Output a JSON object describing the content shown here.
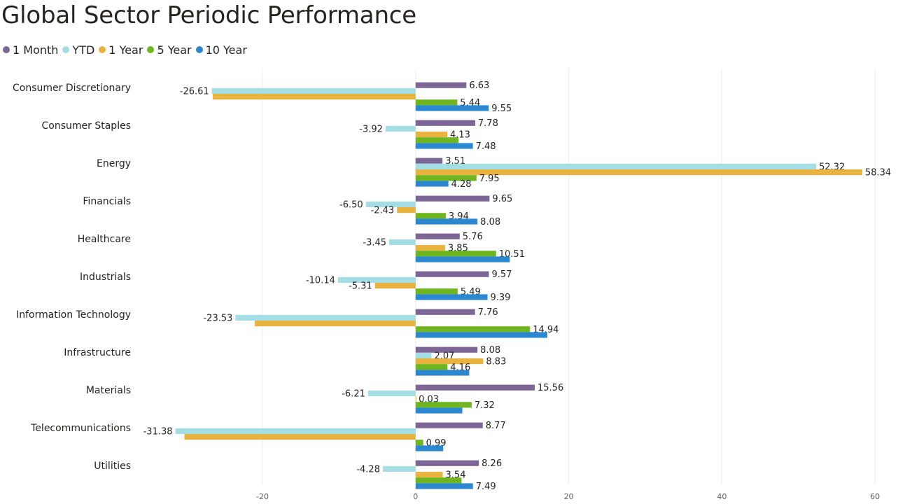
{
  "title": "Global Sector Periodic Performance",
  "chart_data": {
    "type": "bar",
    "orientation": "horizontal",
    "title": "Global Sector Periodic Performance",
    "categories": [
      "Consumer Discretionary",
      "Consumer Staples",
      "Energy",
      "Financials",
      "Healthcare",
      "Industrials",
      "Information Technology",
      "Infrastructure",
      "Materials",
      "Telecommunications",
      "Utilities"
    ],
    "series": [
      {
        "name": "1 Month",
        "color": "#7b6695",
        "values": [
          6.63,
          7.78,
          3.51,
          9.65,
          5.76,
          9.57,
          7.76,
          8.08,
          15.56,
          8.77,
          8.26
        ],
        "labels": [
          "6.63",
          "7.78",
          "3.51",
          "9.65",
          "5.76",
          "9.57",
          "7.76",
          "8.08",
          "15.56",
          "8.77",
          "8.26"
        ]
      },
      {
        "name": "YTD",
        "color": "#a5dde4",
        "values": [
          -26.61,
          -3.92,
          52.32,
          -6.5,
          -3.45,
          -10.14,
          -23.53,
          2.07,
          -6.21,
          -31.38,
          -4.28
        ],
        "labels": [
          "-26.61",
          "-3.92",
          "52.32",
          "-6.50",
          "-3.45",
          "-10.14",
          "-23.53",
          "2.07",
          "-6.21",
          "-31.38",
          "-4.28"
        ]
      },
      {
        "name": "1 Year",
        "color": "#e8b33e",
        "values": [
          -26.5,
          4.13,
          58.34,
          -2.43,
          3.85,
          -5.31,
          -21,
          8.83,
          0.03,
          -30.2,
          3.54
        ],
        "labels": [
          "",
          "4.13",
          "58.34",
          "-2.43",
          "3.85",
          "-5.31",
          "",
          "8.83",
          "0.03",
          "",
          "3.54"
        ]
      },
      {
        "name": "5 Year",
        "color": "#6eb51f",
        "values": [
          5.44,
          5.6,
          7.95,
          3.94,
          10.51,
          5.49,
          14.94,
          4.16,
          7.32,
          0.99,
          6.0
        ],
        "labels": [
          "5.44",
          "",
          "7.95",
          "3.94",
          "10.51",
          "5.49",
          "14.94",
          "4.16",
          "7.32",
          "0.99",
          ""
        ]
      },
      {
        "name": "10 Year",
        "color": "#2b88d0",
        "values": [
          9.55,
          7.48,
          4.28,
          8.08,
          12.3,
          9.39,
          17.2,
          7.0,
          6.1,
          3.6,
          7.49
        ],
        "labels": [
          "9.55",
          "7.48",
          "4.28",
          "8.08",
          "",
          "9.39",
          "",
          "",
          "",
          "",
          "7.49"
        ]
      }
    ],
    "xlim": [
      -36,
      62
    ],
    "xticks": [
      -20,
      0,
      20,
      40,
      60
    ],
    "grid": true,
    "legend_position": "top-left",
    "xlabel": "",
    "ylabel": ""
  }
}
